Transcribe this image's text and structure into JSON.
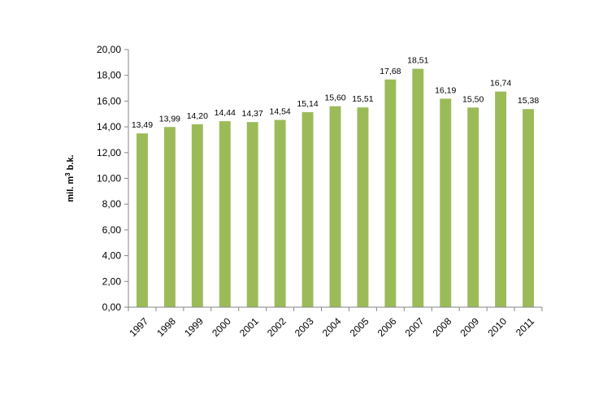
{
  "chart_data": {
    "type": "bar",
    "title": "",
    "xlabel": "",
    "ylabel_parts": {
      "base": "mil. m",
      "sup": "3",
      "suffix": " b.k."
    },
    "ylim": [
      0,
      20
    ],
    "ytick_values": [
      0,
      2,
      4,
      6,
      8,
      10,
      12,
      14,
      16,
      18,
      20
    ],
    "ytick_labels": [
      "0,00",
      "2,00",
      "4,00",
      "6,00",
      "8,00",
      "10,00",
      "12,00",
      "14,00",
      "16,00",
      "18,00",
      "20,00"
    ],
    "categories": [
      "1997",
      "1998",
      "1999",
      "2000",
      "2001",
      "2002",
      "2003",
      "2004",
      "2005",
      "2006",
      "2007",
      "2008",
      "2009",
      "2010",
      "2011"
    ],
    "values": [
      13.49,
      13.99,
      14.2,
      14.44,
      14.37,
      14.54,
      15.14,
      15.6,
      15.51,
      17.68,
      18.51,
      16.19,
      15.5,
      16.74,
      15.38
    ],
    "value_labels": [
      "13,49",
      "13,99",
      "14,20",
      "14,44",
      "14,37",
      "14,54",
      "15,14",
      "15,60",
      "15,51",
      "17,68",
      "18,51",
      "16,19",
      "15,50",
      "16,74",
      "15,38"
    ],
    "grid": false,
    "legend": "none",
    "colors": {
      "bar": "#9bbb59",
      "axis": "#868686"
    }
  }
}
